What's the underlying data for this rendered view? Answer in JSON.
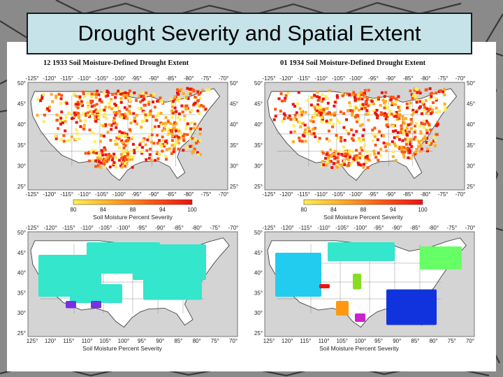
{
  "slide": {
    "title": "Drought Severity and Spatial Extent",
    "background_color": "#8f8f8f",
    "title_box_color": "#c5e3e8"
  },
  "figures": [
    {
      "id": "map-1933",
      "title": "12 1933 Soil Moisture-Defined Drought Extent",
      "top_labels": [
        "-125°",
        "-120°",
        "-115°",
        "-110°",
        "-105°",
        "-100°",
        "-95°",
        "-90°",
        "-85°",
        "-80°",
        "-75°",
        "-70°"
      ],
      "left_labels": [
        "50°",
        "45°",
        "40°",
        "35°",
        "30°",
        "25°"
      ],
      "right_labels": [
        "50°",
        "45°",
        "40°",
        "35°",
        "30°",
        "25°"
      ],
      "severity_color": "#ff4400"
    },
    {
      "id": "map-1934",
      "title": "01 1934 Soil Moisture-Defined Drought Extent",
      "top_labels": [
        "-125°",
        "-120°",
        "-115°",
        "-110°",
        "-105°",
        "-100°",
        "-95°",
        "-90°",
        "-85°",
        "-80°",
        "-75°",
        "-70°"
      ],
      "left_labels": [
        "50°",
        "45°",
        "40°",
        "35°",
        "30°",
        "25°"
      ],
      "right_labels": [
        "50°",
        "45°",
        "40°",
        "35°",
        "30°",
        "25°"
      ],
      "severity_color": "#ff4400"
    },
    {
      "id": "clusters-1933",
      "top_labels": [
        "-125°",
        "-120°",
        "-115°",
        "-110°",
        "-105°",
        "-100°",
        "-95°",
        "-90°",
        "-85°",
        "-80°",
        "-75°",
        "-70°"
      ],
      "bottom_labels": [
        "125°",
        "120°",
        "115°",
        "110°",
        "105°",
        "100°",
        "95°",
        "90°",
        "85°",
        "80°",
        "75°",
        "70°"
      ],
      "left_labels": [
        "50°",
        "45°",
        "40°",
        "35°",
        "30°",
        "25°"
      ],
      "caption": "Soil Moisture Percent Severity",
      "cluster_colors": [
        "#33e6cc",
        "#7a2ee6"
      ]
    },
    {
      "id": "clusters-1934",
      "top_labels": [
        "-125°",
        "-120°",
        "-115°",
        "-110°",
        "-105°",
        "-100°",
        "-95°",
        "-90°",
        "-85°",
        "-80°",
        "-75°",
        "-70°"
      ],
      "bottom_labels": [
        "125°",
        "120°",
        "115°",
        "110°",
        "105°",
        "100°",
        "95°",
        "90°",
        "85°",
        "80°",
        "75°",
        "70°"
      ],
      "left_labels": [
        "50°",
        "45°",
        "40°",
        "35°",
        "30°",
        "25°"
      ],
      "caption": "Soil Moisture Percent Severity",
      "cluster_colors": [
        "#22ccee",
        "#33e6cc",
        "#66ff66",
        "#1133dd",
        "#88dd22",
        "#ee1111",
        "#ff9911",
        "#cc22cc"
      ]
    }
  ],
  "colorbars": [
    {
      "labels": [
        "80",
        "84",
        "88",
        "94",
        "100"
      ],
      "caption": "Soil Moisture Percent Severity",
      "colors": [
        "#ffee55",
        "#ffaa22",
        "#ff5511",
        "#ee1111"
      ]
    },
    {
      "labels": [
        "80",
        "84",
        "88",
        "94",
        "100"
      ],
      "caption": "Soil Moisture Percent Severity",
      "colors": [
        "#ffee55",
        "#ffaa22",
        "#ff5511",
        "#ee1111"
      ]
    }
  ]
}
